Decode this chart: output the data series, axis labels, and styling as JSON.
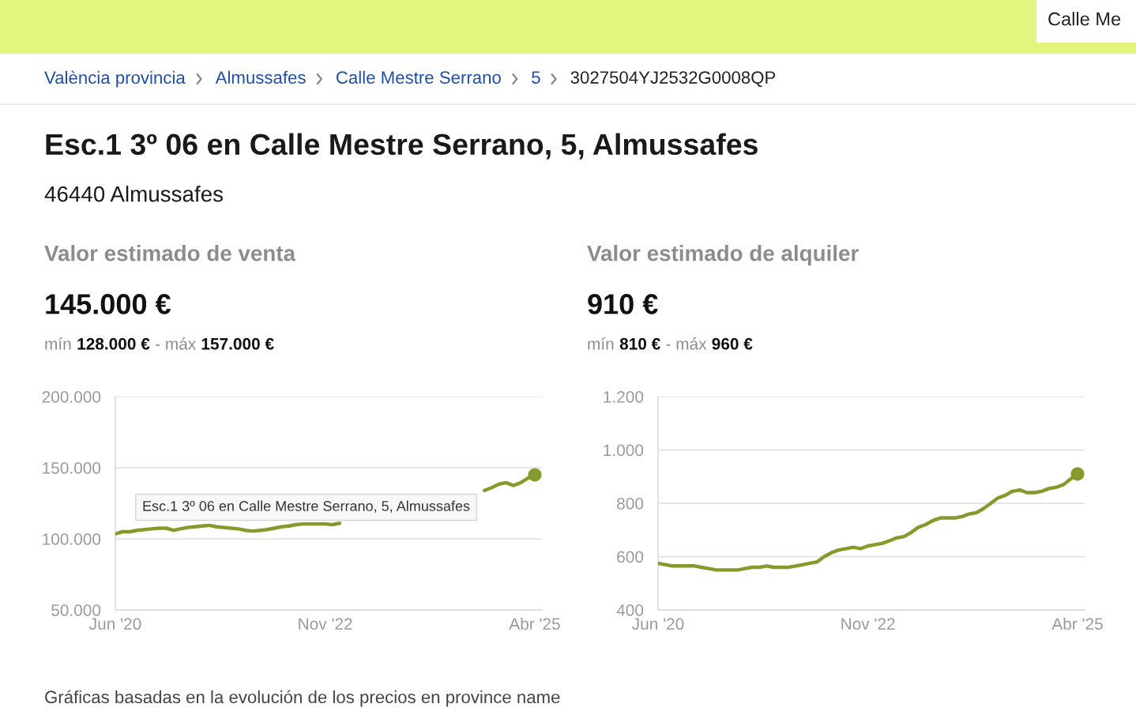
{
  "chart_data": [
    {
      "type": "other",
      "title": "Esc.1 3º 06 en Calle Mestre Serrano, 5, Almussafes",
      "subtitle": "46440 Almussafes",
      "annotations": [
        "Calle Me",
        "València provincia",
        "Almussafes",
        "Calle Mestre Serrano",
        "5",
        "3027504YJ2532G0008QP",
        "Gráficas basadas en la evolución de los precios en province name"
      ]
    },
    {
      "type": "line",
      "title": "Valor estimado de venta",
      "subtitle": "145.000 €",
      "annotations": [
        "mín",
        "128.000 €",
        "- máx",
        "157.000 €",
        "Esc.1 3º 06 en Calle Mestre Serrano, 5, Almussafes"
      ],
      "x": [
        "2020-06",
        "2020-07",
        "2020-08",
        "2020-09",
        "2020-10",
        "2020-11",
        "2020-12",
        "2021-01",
        "2021-02",
        "2021-03",
        "2021-04",
        "2021-05",
        "2021-06",
        "2021-07",
        "2021-08",
        "2021-09",
        "2021-10",
        "2021-11",
        "2021-12",
        "2022-01",
        "2022-02",
        "2022-03",
        "2022-04",
        "2022-05",
        "2022-06",
        "2022-07",
        "2022-08",
        "2022-09",
        "2022-10",
        "2022-11",
        "2022-12",
        "2023-01",
        "2023-02",
        "2023-03",
        "2023-04",
        "2023-05",
        "2023-06",
        "2023-07",
        "2023-08",
        "2023-09",
        "2023-10",
        "2023-11",
        "2023-12",
        "2024-01",
        "2024-02",
        "2024-03",
        "2024-04",
        "2024-05",
        "2024-06",
        "2024-07",
        "2024-08",
        "2024-09",
        "2024-10",
        "2024-11",
        "2024-12",
        "2025-01",
        "2025-02",
        "2025-03",
        "2025-04"
      ],
      "series": [
        {
          "color": "#849b2c",
          "values": [
            103500,
            105000,
            105000,
            106000,
            106500,
            107000,
            107500,
            107500,
            106000,
            107000,
            108000,
            108500,
            109000,
            109500,
            108500,
            108000,
            107500,
            107000,
            106000,
            105500,
            106000,
            106500,
            107500,
            108500,
            109000,
            110000,
            110500,
            110500,
            110500,
            110500,
            110000,
            111000,
            null,
            null,
            null,
            null,
            null,
            null,
            null,
            null,
            null,
            null,
            null,
            null,
            null,
            null,
            null,
            null,
            null,
            null,
            null,
            134000,
            136000,
            138500,
            139500,
            137500,
            139500,
            142500,
            145000
          ]
        },
        {
          "type": "scatter",
          "x": [
            "2025-04"
          ],
          "values": [
            145000
          ],
          "color": "#849b2c"
        }
      ],
      "xlim": [
        "2020-06",
        "2025-05"
      ],
      "xticks": [
        {
          "value": "2020-06",
          "label": "Jun '20"
        },
        {
          "value": "2022-11",
          "label": "Nov '22"
        },
        {
          "value": "2025-04",
          "label": "Abr '25"
        }
      ],
      "ylim": [
        50000,
        200000
      ],
      "yticks": [
        {
          "value": 50000,
          "label": "50.000"
        },
        {
          "value": 100000,
          "label": "100.000"
        },
        {
          "value": 150000,
          "label": "150.000"
        },
        {
          "value": 200000,
          "label": "200.000"
        }
      ],
      "grid": "y"
    },
    {
      "type": "line",
      "title": "Valor estimado de alquiler",
      "subtitle": "910 €",
      "annotations": [
        "mín",
        "810 €",
        "- máx",
        "960 €"
      ],
      "x": [
        "2020-06",
        "2020-07",
        "2020-08",
        "2020-09",
        "2020-10",
        "2020-11",
        "2020-12",
        "2021-01",
        "2021-02",
        "2021-03",
        "2021-04",
        "2021-05",
        "2021-06",
        "2021-07",
        "2021-08",
        "2021-09",
        "2021-10",
        "2021-11",
        "2021-12",
        "2022-01",
        "2022-02",
        "2022-03",
        "2022-04",
        "2022-05",
        "2022-06",
        "2022-07",
        "2022-08",
        "2022-09",
        "2022-10",
        "2022-11",
        "2022-12",
        "2023-01",
        "2023-02",
        "2023-03",
        "2023-04",
        "2023-05",
        "2023-06",
        "2023-07",
        "2023-08",
        "2023-09",
        "2023-10",
        "2023-11",
        "2023-12",
        "2024-01",
        "2024-02",
        "2024-03",
        "2024-04",
        "2024-05",
        "2024-06",
        "2024-07",
        "2024-08",
        "2024-09",
        "2024-10",
        "2024-11",
        "2024-12",
        "2025-01",
        "2025-02",
        "2025-03",
        "2025-04"
      ],
      "series": [
        {
          "color": "#849b2c",
          "values": [
            575,
            570,
            565,
            565,
            565,
            565,
            560,
            555,
            550,
            550,
            550,
            550,
            555,
            560,
            560,
            565,
            560,
            560,
            560,
            565,
            570,
            575,
            580,
            600,
            615,
            625,
            630,
            635,
            630,
            640,
            645,
            650,
            660,
            670,
            675,
            690,
            710,
            720,
            735,
            745,
            745,
            745,
            750,
            760,
            765,
            780,
            800,
            820,
            830,
            845,
            850,
            840,
            840,
            845,
            855,
            860,
            870,
            890,
            910
          ]
        },
        {
          "type": "scatter",
          "x": [
            "2025-04"
          ],
          "values": [
            910
          ],
          "color": "#849b2c"
        }
      ],
      "xlim": [
        "2020-06",
        "2025-05"
      ],
      "xticks": [
        {
          "value": "2020-06",
          "label": "Jun '20"
        },
        {
          "value": "2022-11",
          "label": "Nov '22"
        },
        {
          "value": "2025-04",
          "label": "Abr '25"
        }
      ],
      "ylim": [
        400,
        1200
      ],
      "yticks": [
        400,
        600,
        800,
        {
          "value": 1000,
          "label": "1.000"
        },
        {
          "value": 1200,
          "label": "1.200"
        }
      ],
      "grid": "y"
    }
  ]
}
